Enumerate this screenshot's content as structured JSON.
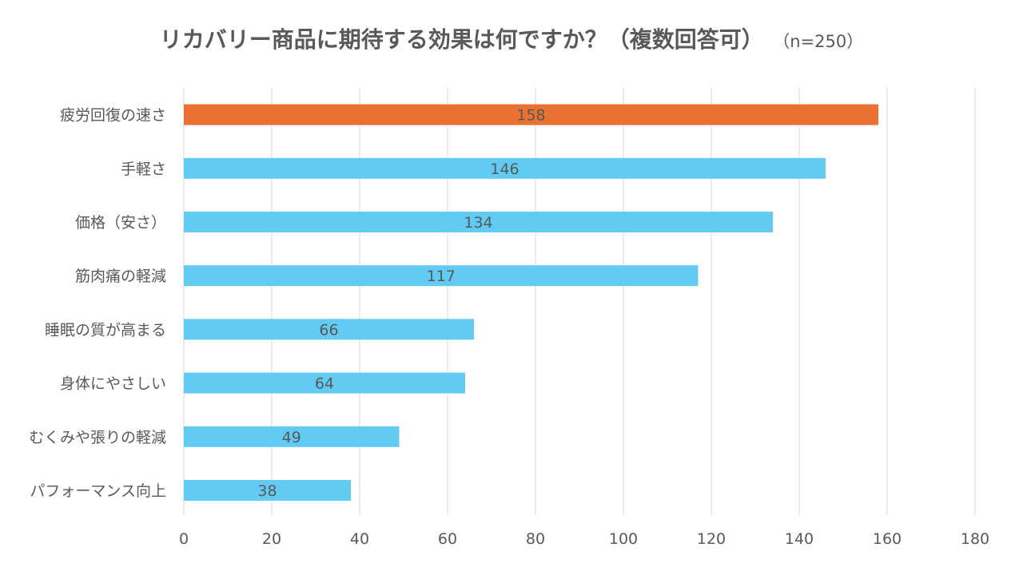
{
  "chart_data": {
    "type": "bar",
    "orientation": "horizontal",
    "title": "リカバリー商品に期待する効果は何ですか？（複数回答可）",
    "subtitle": "（n=250）",
    "categories": [
      "疲労回復の速さ",
      "手軽さ",
      "価格（安さ）",
      "筋肉痛の軽減",
      "睡眠の質が高まる",
      "身体にやさしい",
      "むくみや張りの軽減",
      "パフォーマンス向上"
    ],
    "values": [
      158,
      146,
      134,
      117,
      66,
      64,
      49,
      38
    ],
    "highlight_index": 0,
    "colors": {
      "highlight": "#E97132",
      "default": "#61CBF3",
      "grid": "#D9D9D9",
      "text": "#595959"
    },
    "xlim": [
      0,
      180
    ],
    "xticks": [
      0,
      20,
      40,
      60,
      80,
      100,
      120,
      140,
      160,
      180
    ],
    "grid": true,
    "legend": "none"
  }
}
